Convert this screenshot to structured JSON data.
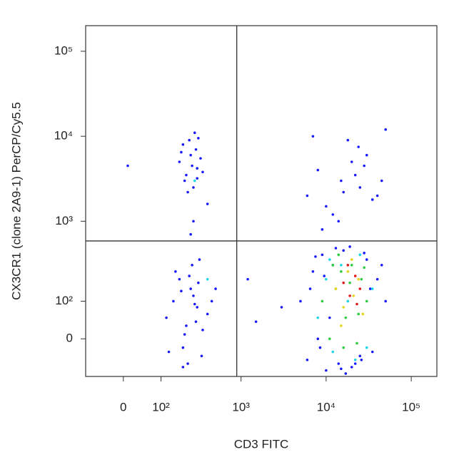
{
  "chart_data": {
    "type": "scatter",
    "xlabel": "CD3 FITC",
    "ylabel": "CX3CR1 (clone 2A9-1) PerCP/Cy5.5",
    "xscale": "biexponential",
    "yscale": "biexponential",
    "xlim": [
      -100,
      200000
    ],
    "ylim": [
      -100,
      200000
    ],
    "xticks": [
      0,
      {
        "value": 100,
        "label": "10²"
      },
      {
        "value": 1000,
        "label": "10³"
      },
      {
        "value": 10000,
        "label": "10⁴"
      },
      {
        "value": 100000,
        "label": "10⁵"
      }
    ],
    "yticks": [
      0,
      {
        "value": 100,
        "label": "10²"
      },
      {
        "value": 1000,
        "label": "10³"
      },
      {
        "value": 10000,
        "label": "10⁴"
      },
      {
        "value": 100000,
        "label": "10⁵"
      }
    ],
    "quadrant_gates": {
      "x": 890,
      "y": 585
    },
    "series": [
      {
        "color": "#1a1aff",
        "x": [
          10,
          180,
          220,
          250,
          300,
          200,
          270,
          330,
          240,
          210,
          290,
          260,
          350,
          190,
          230,
          310,
          280,
          250,
          400,
          270,
          300,
          120,
          150,
          200,
          250,
          300,
          180,
          220,
          270,
          340,
          400,
          160,
          210,
          260,
          310,
          230,
          280,
          190,
          350,
          450,
          130,
          240,
          290,
          500,
          320,
          200,
          6000,
          8000,
          10000,
          15000,
          20000,
          25000,
          30000,
          40000,
          12000,
          18000,
          22000,
          35000,
          9000,
          28000,
          45000,
          16000,
          7000,
          50000,
          24000,
          14000,
          5000,
          6000,
          7000,
          8000,
          9000,
          10000,
          12000,
          14000,
          16000,
          20000,
          25000,
          30000,
          40000,
          50000,
          6500,
          8500,
          11000,
          13000,
          17000,
          22000,
          28000,
          35000,
          45000,
          7500,
          9500,
          15000,
          19000,
          26000,
          33000,
          3000,
          1200,
          1500
        ],
        "y": [
          4500,
          5000,
          3500,
          6000,
          4200,
          8000,
          2500,
          5500,
          9000,
          3000,
          7000,
          4500,
          3800,
          6500,
          2200,
          9500,
          11000,
          700,
          1600,
          1000,
          3200,
          50,
          100,
          -20,
          150,
          80,
          200,
          30,
          120,
          -40,
          60,
          250,
          10,
          300,
          180,
          -60,
          90,
          140,
          20,
          100,
          -30,
          220,
          40,
          150,
          350,
          -70,
          2000,
          4000,
          1500,
          3000,
          5000,
          2500,
          6000,
          2000,
          1200,
          9000,
          3500,
          1800,
          800,
          4500,
          3000,
          2200,
          10000,
          12000,
          7500,
          1000,
          100,
          -50,
          250,
          0,
          400,
          -80,
          300,
          -60,
          450,
          -70,
          -40,
          350,
          200,
          100,
          150,
          -20,
          50,
          480,
          -90,
          -60,
          420,
          -30,
          300,
          380,
          220,
          -75,
          500,
          -50,
          150,
          80,
          200,
          40
        ]
      },
      {
        "color": "#19d6e6",
        "x": [
          8000,
          10000,
          12000,
          15000,
          18000,
          25000,
          30000,
          35000,
          11000,
          22000,
          400,
          280
        ],
        "y": [
          50,
          200,
          -30,
          300,
          100,
          400,
          -20,
          150,
          350,
          -50,
          200,
          3000
        ]
      },
      {
        "color": "#2ecc40",
        "x": [
          9000,
          11000,
          13000,
          15000,
          17000,
          20000,
          23000,
          26000,
          30000,
          12000,
          16000,
          19000,
          24000,
          28000,
          14000
        ],
        "y": [
          100,
          0,
          150,
          250,
          50,
          300,
          -10,
          200,
          100,
          300,
          -20,
          180,
          60,
          280,
          400
        ]
      },
      {
        "color": "#e6d619",
        "x": [
          13000,
          16000,
          18000,
          21000,
          24000,
          27000,
          15000,
          20000
        ],
        "y": [
          150,
          80,
          250,
          120,
          200,
          60,
          30,
          350
        ]
      },
      {
        "color": "#e61919",
        "x": [
          16000,
          19000,
          22000,
          25000,
          18000,
          23000
        ],
        "y": [
          180,
          120,
          220,
          150,
          300,
          90
        ]
      }
    ]
  }
}
